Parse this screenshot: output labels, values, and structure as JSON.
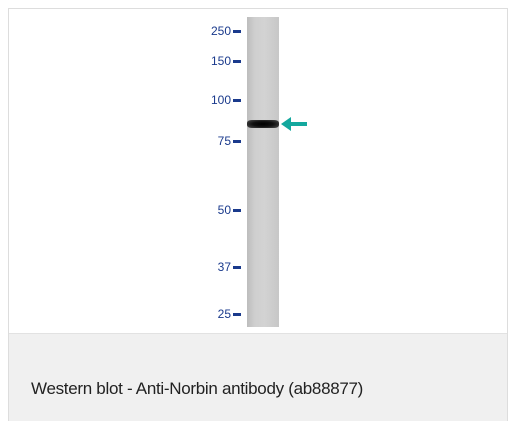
{
  "markers": [
    {
      "label": "250"
    },
    {
      "label": "150"
    },
    {
      "label": "100"
    },
    {
      "label": "75"
    },
    {
      "label": "50"
    },
    {
      "label": "37"
    },
    {
      "label": "25"
    }
  ],
  "band_marker": {
    "icon": "arrow-left-icon",
    "color": "#13a89e"
  },
  "colors": {
    "marker_text": "#1a3a8c",
    "lane": "#cccccc",
    "band": "#000000"
  },
  "caption": "Western blot - Anti-Norbin antibody (ab88877)"
}
